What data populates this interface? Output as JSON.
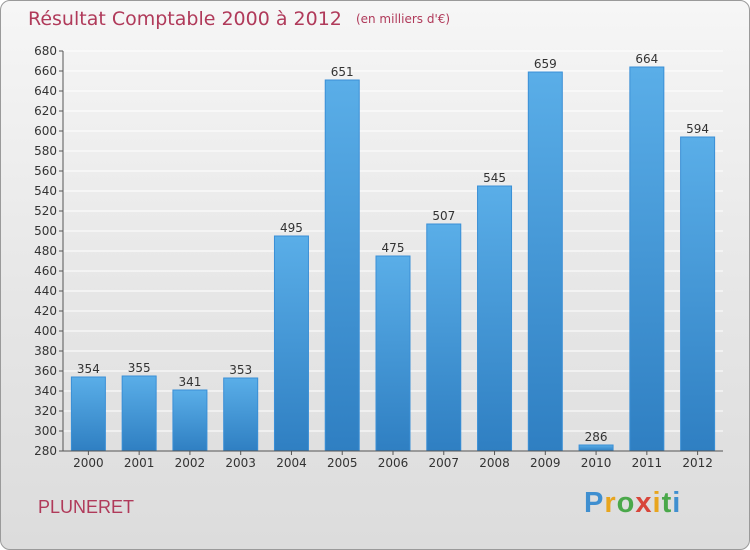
{
  "title": "Résultat Comptable 2000 à 2012",
  "subtitle": "(en milliers d'€)",
  "town": "PLUNERET",
  "brand": {
    "text": "Proxiti"
  },
  "colors": {
    "title": "#b03a5a",
    "bar_top": "#5aaee8",
    "bar_bottom": "#2f7fc2",
    "grid": "#ffffff",
    "brand_blue": "#3f8fd0",
    "brand_orange": "#e8a51e",
    "brand_green": "#4aa84a",
    "brand_red": "#d8453a"
  },
  "chart_data": {
    "type": "bar",
    "categories": [
      "2000",
      "2001",
      "2002",
      "2003",
      "2004",
      "2005",
      "2006",
      "2007",
      "2008",
      "2009",
      "2010",
      "2011",
      "2012"
    ],
    "values": [
      354,
      355,
      341,
      353,
      495,
      651,
      475,
      507,
      545,
      659,
      286,
      664,
      594
    ],
    "title": "Résultat Comptable 2000 à 2012",
    "subtitle": "(en milliers d'€)",
    "xlabel": "",
    "ylabel": "",
    "ylim": [
      280,
      680
    ],
    "yticks": [
      280,
      300,
      320,
      340,
      360,
      380,
      400,
      420,
      440,
      460,
      480,
      500,
      520,
      540,
      560,
      580,
      600,
      620,
      640,
      660,
      680
    ],
    "grid": true,
    "data_labels": true
  }
}
